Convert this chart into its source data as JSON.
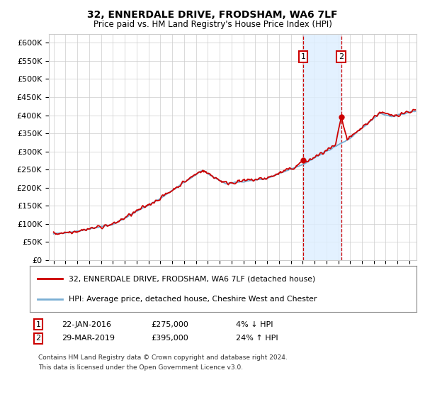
{
  "title": "32, ENNERDALE DRIVE, FRODSHAM, WA6 7LF",
  "subtitle": "Price paid vs. HM Land Registry's House Price Index (HPI)",
  "ylabel_ticks": [
    "£0",
    "£50K",
    "£100K",
    "£150K",
    "£200K",
    "£250K",
    "£300K",
    "£350K",
    "£400K",
    "£450K",
    "£500K",
    "£550K",
    "£600K"
  ],
  "ytick_values": [
    0,
    50000,
    100000,
    150000,
    200000,
    250000,
    300000,
    350000,
    400000,
    450000,
    500000,
    550000,
    600000
  ],
  "ylim": [
    0,
    625000
  ],
  "xlim_start": 1994.6,
  "xlim_end": 2025.6,
  "event1_x": 2016.055,
  "event1_y": 275000,
  "event1_label": "1",
  "event1_date": "22-JAN-2016",
  "event1_price": "£275,000",
  "event1_hpi": "4% ↓ HPI",
  "event2_x": 2019.24,
  "event2_y": 395000,
  "event2_label": "2",
  "event2_date": "29-MAR-2019",
  "event2_price": "£395,000",
  "event2_hpi": "24% ↑ HPI",
  "legend_house": "32, ENNERDALE DRIVE, FRODSHAM, WA6 7LF (detached house)",
  "legend_hpi": "HPI: Average price, detached house, Cheshire West and Chester",
  "footnote1": "Contains HM Land Registry data © Crown copyright and database right 2024.",
  "footnote2": "This data is licensed under the Open Government Licence v3.0.",
  "house_color": "#cc0000",
  "hpi_color": "#7aafd4",
  "shading_color": "#ddeeff",
  "background_color": "#ffffff",
  "grid_color": "#cccccc"
}
